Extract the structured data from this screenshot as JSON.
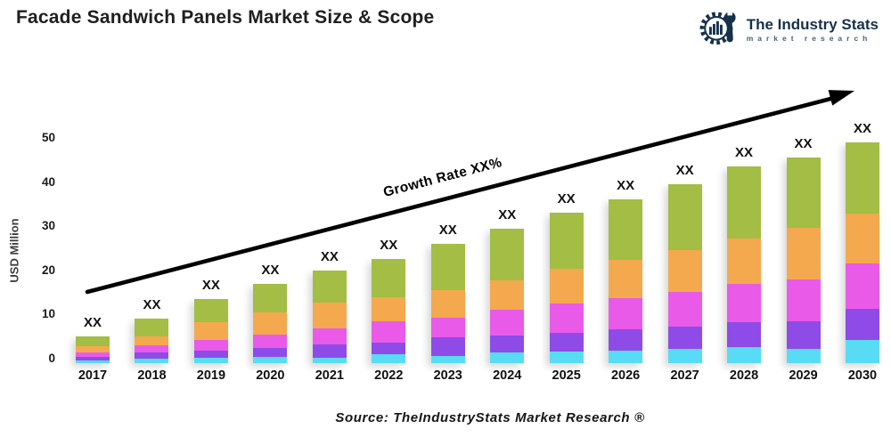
{
  "title": "Facade Sandwich Panels Market Size & Scope",
  "logo": {
    "name": "The Industry Stats",
    "tagline": "market research",
    "color": "#16324a"
  },
  "annotation": {
    "growth_label": "Growth Rate XX%"
  },
  "source": "Source: TheIndustryStats Market Research ®",
  "chart_data": {
    "type": "bar",
    "stacked": true,
    "title": "Facade Sandwich Panels Market Size & Scope",
    "xlabel": "",
    "ylabel": "USD Million",
    "ylim": [
      0,
      50
    ],
    "yticks": [
      0,
      10,
      20,
      30,
      40,
      50
    ],
    "grid": false,
    "legend": "none",
    "bar_value_label": "XX",
    "categories": [
      "2017",
      "2018",
      "2019",
      "2020",
      "2021",
      "2022",
      "2023",
      "2024",
      "2025",
      "2026",
      "2027",
      "2028",
      "2029",
      "2030"
    ],
    "series": [
      {
        "name": "segment-cyan",
        "color": "#58dcf6",
        "values": [
          0.5,
          1.0,
          1.2,
          1.5,
          1.3,
          2.1,
          1.6,
          2.4,
          2.6,
          2.9,
          3.2,
          3.6,
          3.2,
          5.3
        ]
      },
      {
        "name": "segment-purple",
        "color": "#8e4be7",
        "values": [
          0.9,
          1.5,
          1.6,
          1.9,
          3.0,
          2.5,
          4.2,
          3.8,
          4.3,
          4.7,
          5.1,
          5.6,
          6.2,
          6.9
        ]
      },
      {
        "name": "segment-magenta",
        "color": "#e95ae9",
        "values": [
          1.1,
          1.5,
          2.4,
          3.1,
          3.6,
          4.8,
          4.5,
          5.9,
          6.6,
          7.2,
          7.9,
          8.7,
          9.6,
          10.4
        ]
      },
      {
        "name": "segment-orange",
        "color": "#f4a94e",
        "values": [
          1.3,
          2.0,
          4.0,
          5.0,
          5.9,
          5.6,
          6.3,
          6.7,
          7.8,
          8.5,
          9.4,
          10.3,
          11.6,
          11.2
        ]
      },
      {
        "name": "segment-green",
        "color": "#a3bd45",
        "values": [
          2.2,
          4.0,
          5.3,
          6.5,
          7.2,
          8.5,
          10.4,
          11.7,
          12.7,
          13.7,
          14.9,
          16.3,
          15.9,
          16.2
        ]
      }
    ],
    "totals": [
      6.0,
      10.0,
      14.5,
      18.0,
      21.0,
      23.5,
      27.0,
      30.5,
      34.0,
      37.0,
      40.5,
      44.5,
      46.5,
      50.0
    ],
    "annotation_arrow": "Growth Rate XX%"
  }
}
